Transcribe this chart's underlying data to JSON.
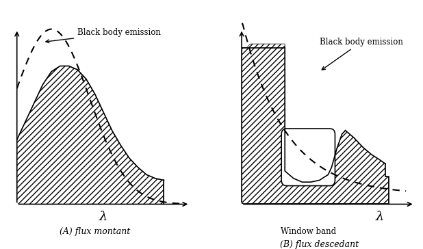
{
  "fig_width": 6.18,
  "fig_height": 3.64,
  "background_color": "#ffffff",
  "left_label": "(A) flux montant",
  "right_label": "(B) flux descedant",
  "annotation_text": "Black body emission",
  "window_band_text": "Window band",
  "lambda_label": "λ",
  "hatch_pattern": "////",
  "hatch_color": "#000000",
  "hatch_linewidth": 0.8,
  "line_color": "#000000",
  "dashed_color": "#000000"
}
